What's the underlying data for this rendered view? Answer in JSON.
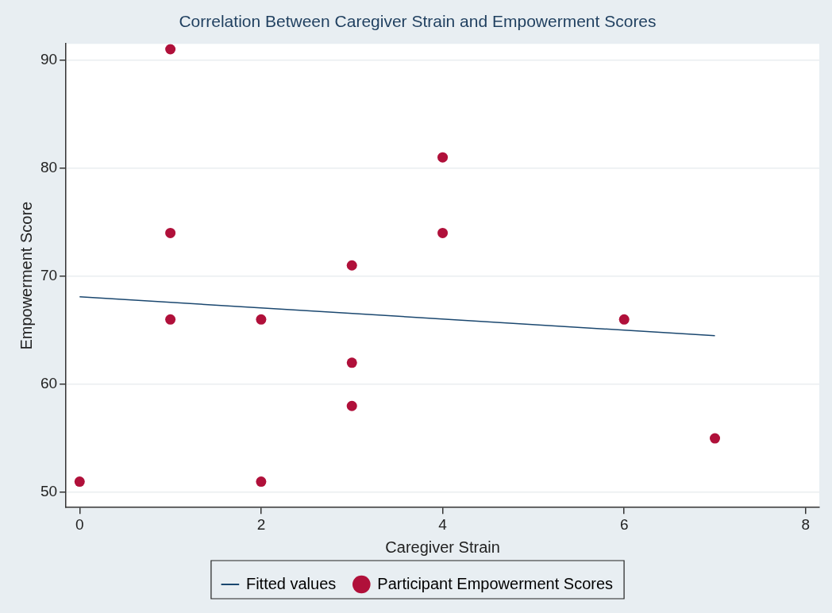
{
  "chart_data": {
    "type": "scatter",
    "title": "Correlation Between Caregiver Strain and Empowerment Scores",
    "xlabel": "Caregiver Strain",
    "ylabel": "Empowerment Score",
    "series": [
      {
        "name": "Fitted values",
        "type": "line",
        "color": "#1a476f",
        "marker": "none",
        "line_style": "solid",
        "x": [
          0,
          7
        ],
        "values": [
          68.1,
          64.5
        ]
      },
      {
        "name": "Participant Empowerment Scores",
        "color": "#b0103a",
        "marker": "circle",
        "x": [
          0,
          1,
          1,
          1,
          2,
          2,
          3,
          3,
          3,
          4,
          4,
          6,
          7
        ],
        "values": [
          51,
          91,
          74,
          66,
          66,
          51,
          71,
          62,
          58,
          81,
          74,
          66,
          55
        ]
      }
    ],
    "xlim": [
      -0.15,
      8.15
    ],
    "xticks": [
      0,
      2,
      4,
      6,
      8
    ],
    "ylim": [
      48.6,
      91.5
    ],
    "yticks": [
      50,
      60,
      70,
      80,
      90
    ],
    "grid": "y",
    "legend": "bottom"
  }
}
